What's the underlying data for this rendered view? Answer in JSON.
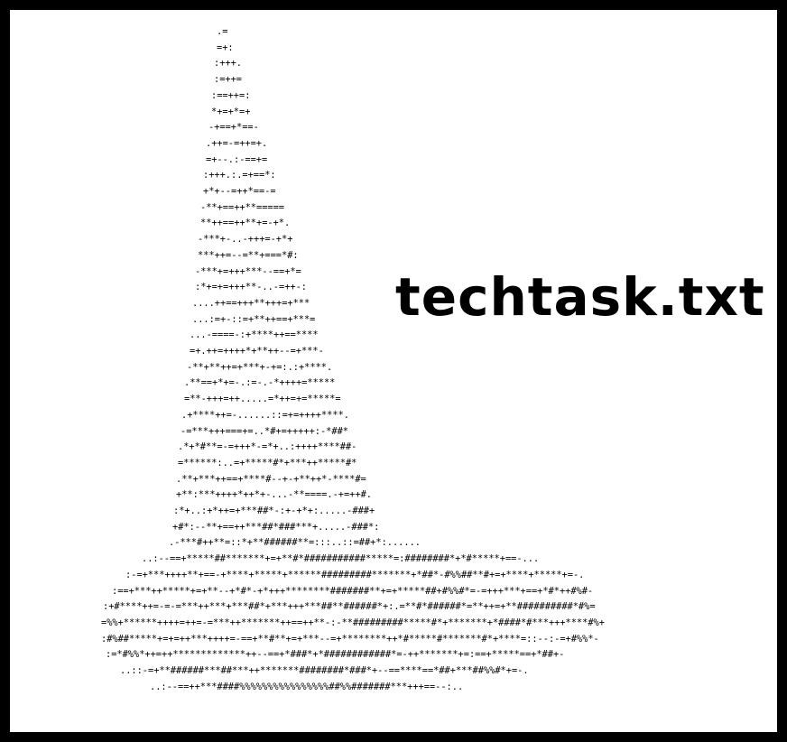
{
  "title": "techtask.txt",
  "ascii_art": [
    ".=",
    "=+:",
    ":+++.",
    ":=++=",
    ":==++=:",
    "*+=+*=+",
    "-+==+*==-",
    ".++=-=++=+.",
    "=+--.:-==+=",
    ":+++.:.=+==*:",
    "+*+--=++*==-=",
    "-**+==++**=====",
    "**++==++**+=-+*.",
    "-***+-..-+++=-+*+",
    "***++=--=**+===*#:",
    "-***+=+++***--==+*=",
    ":*+=+=+++**-..-=++-:",
    "....++==+++**+++=+***",
    "...:=+-::=+**++==+***=",
    "...-====-:+****++==****",
    "=+.++=++++*+**++--=+***-",
    "-**+**++=+***+-+=:.:+****.",
    ".**==+*+=-.:=-.-*++++=*****",
    "=**-+++=++.....=*++=+=*****=",
    ".+****++=-......::=+=++++****.",
    "-=***+++===+=..*#+=+++++:-*##*",
    ".*+*#**=-=+++*-=*+..:++++****##-",
    "=******:..=+*****#*+***++*****#*",
    ".**+***++==+****#--+-+**++*-****#=",
    "+**:***++++*++*+-...-**====.-+=++#.",
    ":*+..:+*++=+***##*-:+-+*+:.....-###+",
    "+#*:--**+==++***##*###***+.....-###*:",
    ".-***#++**=::*+**######**=:::..::=##+*:......",
    "..:--==+*****##*******+=+**#*###########*****=:########*+*#*****+==-...",
    ":-=+***++++**+==-+****+*****+******#########*******+*##*-#%%##**#+=+****+*****+=-.",
    ":==+***++*****+=+**--+*#*-+*+++********#######**+=+*****##+#%%#*=-=+++***+==+*#*++#%#-",
    ":+#****++=-=-=***++***+***##*+***+++***##**######*+:.=**#*######*=**++=+**##########*#%=",
    "=%%+******++++=++=-=***++*******++==++**-:-**#########*****#*+*******+*####*#***+++****#%+",
    ":#%##*****+=+=++***++++=-==+**#**+=+***--=+********++*#*****#*******#*+****=::--:-=+#%%*-",
    ":=*#%%*++=++*************++--==+*###*+*############*=-++*******+=:==+*****==+*##+-",
    "..::-=+**######***##***++*******########*###*+--==****==*##+***##%%#*+=-.",
    "..:--==++***####%%%%%%%%%%%%%%%%##%%#######***+++==--:.."
  ]
}
